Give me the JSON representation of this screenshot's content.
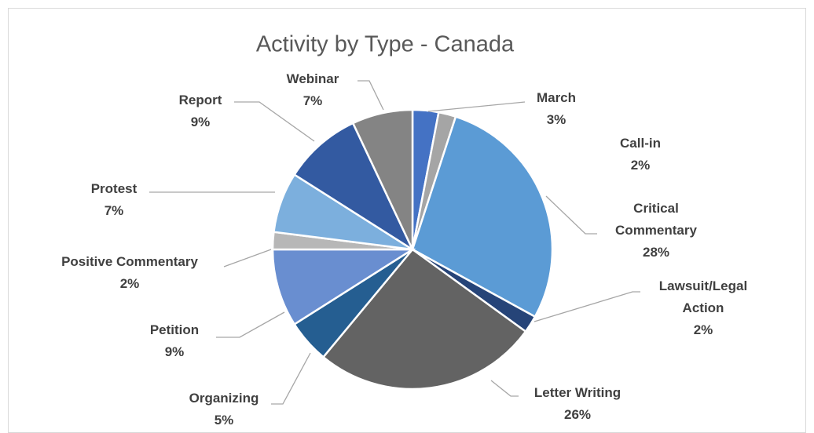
{
  "chart_data": {
    "type": "pie",
    "title": "Activity by Type - Canada",
    "categories": [
      "March",
      "Call-in",
      "Critical Commentary",
      "Lawsuit/Legal Action",
      "Letter Writing",
      "Organizing",
      "Petition",
      "Positive Commentary",
      "Protest",
      "Report",
      "Webinar"
    ],
    "values": [
      3,
      2,
      28,
      2,
      26,
      5,
      9,
      2,
      7,
      9,
      7
    ],
    "value_labels": [
      "3%",
      "2%",
      "28%",
      "2%",
      "26%",
      "5%",
      "9%",
      "2%",
      "7%",
      "9%",
      "7%"
    ],
    "colors": [
      "#4472c4",
      "#a5a5a5",
      "#5b9bd5",
      "#264478",
      "#636363",
      "#255e91",
      "#698ed0",
      "#b7b7b7",
      "#7cafdd",
      "#335aa1",
      "#848484"
    ]
  }
}
